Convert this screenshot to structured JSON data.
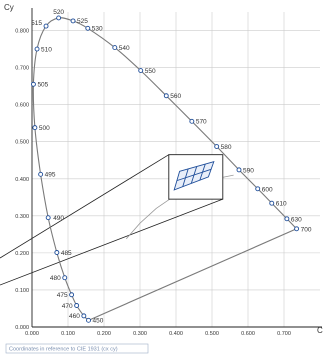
{
  "chart_data": {
    "type": "scatter",
    "title": "",
    "xlabel": "Cx",
    "ylabel": "Cy",
    "xlim": [
      0,
      0.8
    ],
    "ylim": [
      0,
      0.85
    ],
    "x_ticks": [
      "0.000",
      "0.100",
      "0.200",
      "0.300",
      "0.400",
      "0.500",
      "0.600",
      "0.700"
    ],
    "y_ticks": [
      "0.000",
      "0.100",
      "0.200",
      "0.300",
      "0.400",
      "0.500",
      "0.600",
      "0.700",
      "0.800"
    ],
    "grid": true,
    "note": "Coordinates in reference to CIE 1931 (cx cy)",
    "spectral_locus": [
      {
        "label": "450",
        "x": 0.157,
        "y": 0.018
      },
      {
        "label": "460",
        "x": 0.144,
        "y": 0.03
      },
      {
        "label": "470",
        "x": 0.124,
        "y": 0.058
      },
      {
        "label": "475",
        "x": 0.11,
        "y": 0.087
      },
      {
        "label": "480",
        "x": 0.091,
        "y": 0.133
      },
      {
        "label": "485",
        "x": 0.069,
        "y": 0.201
      },
      {
        "label": "490",
        "x": 0.045,
        "y": 0.295
      },
      {
        "label": "495",
        "x": 0.024,
        "y": 0.412
      },
      {
        "label": "500",
        "x": 0.008,
        "y": 0.538
      },
      {
        "label": "505",
        "x": 0.004,
        "y": 0.655
      },
      {
        "label": "510",
        "x": 0.014,
        "y": 0.75
      },
      {
        "label": "515",
        "x": 0.039,
        "y": 0.812
      },
      {
        "label": "520",
        "x": 0.074,
        "y": 0.834
      },
      {
        "label": "525",
        "x": 0.114,
        "y": 0.826
      },
      {
        "label": "530",
        "x": 0.155,
        "y": 0.806
      },
      {
        "label": "540",
        "x": 0.23,
        "y": 0.754
      },
      {
        "label": "550",
        "x": 0.302,
        "y": 0.692
      },
      {
        "label": "560",
        "x": 0.373,
        "y": 0.624
      },
      {
        "label": "570",
        "x": 0.444,
        "y": 0.555
      },
      {
        "label": "580",
        "x": 0.513,
        "y": 0.487
      },
      {
        "label": "590",
        "x": 0.575,
        "y": 0.424
      },
      {
        "label": "600",
        "x": 0.627,
        "y": 0.373
      },
      {
        "label": "610",
        "x": 0.666,
        "y": 0.334
      },
      {
        "label": "630",
        "x": 0.708,
        "y": 0.292
      },
      {
        "label": "700",
        "x": 0.735,
        "y": 0.265
      }
    ],
    "zoom_box": {
      "x0": 0.38,
      "y0": 0.345,
      "x1": 0.53,
      "y1": 0.465
    },
    "zoom_source": {
      "x": 0.0,
      "y": 0.2
    },
    "planckian_arc": [
      {
        "x": 0.262,
        "y": 0.238
      },
      {
        "x": 0.3,
        "y": 0.28
      },
      {
        "x": 0.345,
        "y": 0.32
      },
      {
        "x": 0.39,
        "y": 0.35
      },
      {
        "x": 0.44,
        "y": 0.375
      },
      {
        "x": 0.5,
        "y": 0.398
      },
      {
        "x": 0.56,
        "y": 0.41
      }
    ],
    "bins_grid": {
      "top_left": {
        "x": 0.41,
        "y": 0.42
      },
      "top_right": {
        "x": 0.505,
        "y": 0.446
      },
      "bottom_left": {
        "x": 0.395,
        "y": 0.37
      },
      "bottom_right": {
        "x": 0.49,
        "y": 0.405
      },
      "columns": 4,
      "rows": 2
    },
    "colors": {
      "locus": "#7a7a7a",
      "marker_edge": "#1f4e9a",
      "grid": "#cccccc",
      "bins": "#1f4e9a",
      "zoom_lines": "#222222"
    }
  }
}
